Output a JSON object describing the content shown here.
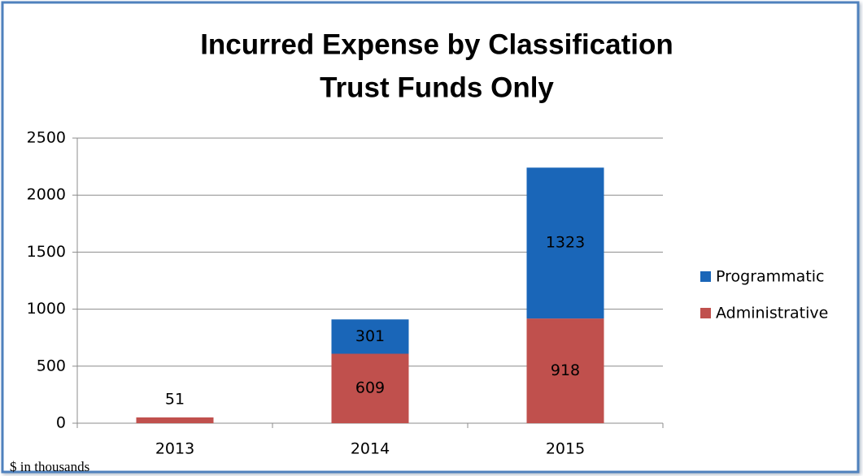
{
  "chart_data": {
    "type": "stacked_bar",
    "title": [
      "Incurred Expense by Classification",
      "Trust Funds Only"
    ],
    "footnote": "$ in thousands",
    "categories": [
      "2013",
      "2014",
      "2015"
    ],
    "series": [
      {
        "name": "Administrative",
        "color": "#c0504d",
        "values": [
          51,
          609,
          918
        ]
      },
      {
        "name": "Programmatic",
        "color": "#1a66b8",
        "values": [
          null,
          301,
          1323
        ]
      }
    ],
    "ylim": [
      0,
      2500
    ],
    "yticks": [
      0,
      500,
      1000,
      1500,
      2000,
      2500
    ],
    "grid": true,
    "legend": "right"
  }
}
